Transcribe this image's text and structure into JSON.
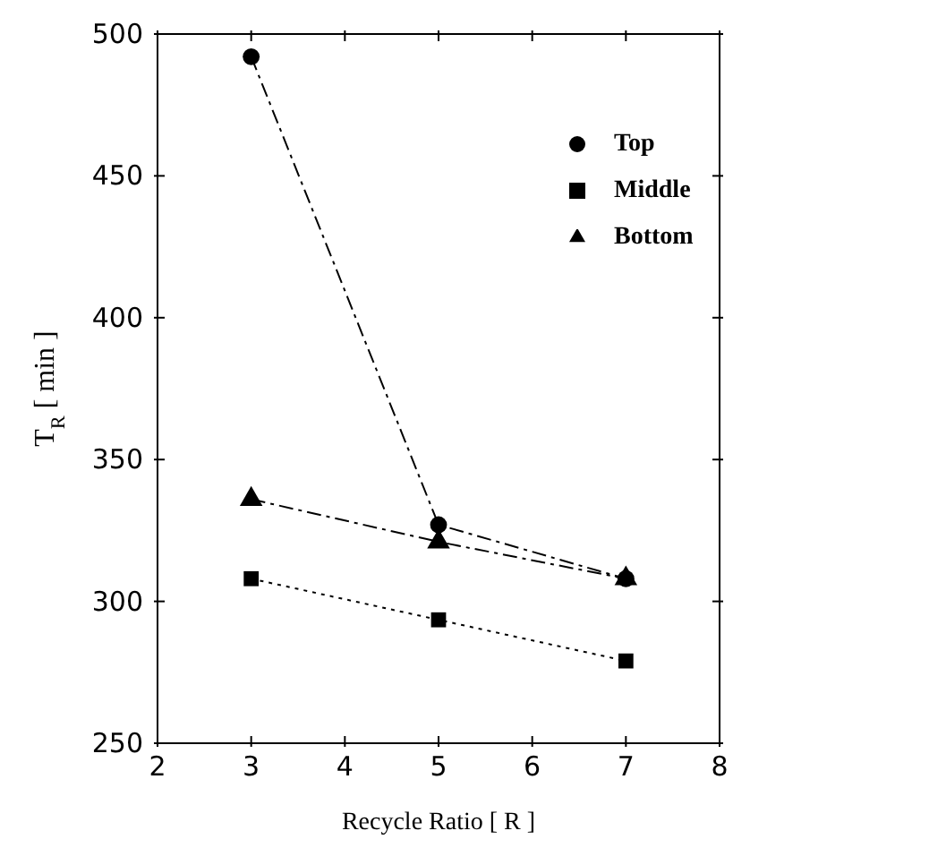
{
  "chart_data": {
    "type": "line",
    "xlabel": "Recycle Ratio [ R ]",
    "ylabel": "T$_{R}$ [ min ]",
    "x": [
      3,
      5,
      7
    ],
    "series": [
      {
        "name": "Top",
        "color": "#000000",
        "values": [
          492,
          327,
          308
        ],
        "marker": "circle",
        "line_style": "dashed"
      },
      {
        "name": "Middle",
        "color": "#000000",
        "values": [
          308,
          293.5,
          279
        ],
        "marker": "square",
        "line_style": "dotted"
      },
      {
        "name": "Bottom",
        "color": "#000000",
        "values": [
          336,
          321,
          308
        ],
        "marker": "triangle",
        "line_style": "dashed"
      }
    ],
    "xlim": [
      2,
      8
    ],
    "xticks": [
      2,
      3,
      4,
      5,
      6,
      7,
      8
    ],
    "ylim": [
      250,
      500
    ],
    "yticks": [
      250,
      300,
      350,
      400,
      450,
      500
    ],
    "legend": "top right"
  }
}
